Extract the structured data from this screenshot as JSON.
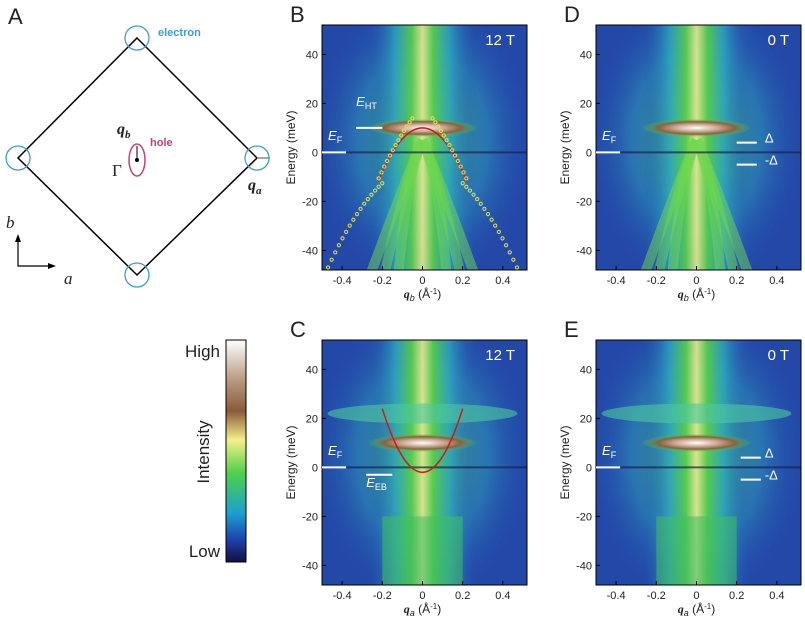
{
  "figure": {
    "panel_a": {
      "label": "A",
      "electron": "electron",
      "hole": "hole",
      "gamma": "Γ",
      "q_b": {
        "main": "q",
        "sub": "b"
      },
      "q_a": {
        "main": "q",
        "sub": "a"
      },
      "axis_b": "b",
      "axis_a": "a"
    },
    "colorbar": {
      "high": "High",
      "title": "Intensity",
      "low": "Low"
    },
    "axes": {
      "ylabel": "Energy (meV)",
      "xlim": [
        -0.5,
        0.52
      ],
      "ylim": [
        -48,
        52
      ],
      "xticks": [
        -0.4,
        -0.2,
        0,
        0.2,
        0.4
      ],
      "yticks": [
        -40,
        -20,
        0,
        20,
        40
      ]
    },
    "panels": [
      {
        "label": "B",
        "field": "12 T",
        "xlabel": {
          "q": "q",
          "sub": "b",
          "unit": " (Å",
          "exp": "-1",
          "close": ")"
        },
        "annotations": [
          {
            "main": "E",
            "sub": "HT"
          },
          {
            "main": "E",
            "sub": "F"
          }
        ]
      },
      {
        "label": "C",
        "field": "12 T",
        "xlabel": {
          "q": "q",
          "sub": "a",
          "unit": " (Å",
          "exp": "-1",
          "close": ")"
        },
        "annotations": [
          {
            "main": "E",
            "sub": "F"
          },
          {
            "main": "E",
            "sub": "EB"
          }
        ]
      },
      {
        "label": "D",
        "field": "0 T",
        "xlabel": {
          "q": "q",
          "sub": "b",
          "unit": " (Å",
          "exp": "-1",
          "close": ")"
        },
        "annotations": [
          {
            "main": "E",
            "sub": "F"
          },
          {
            "main": "Δ"
          },
          {
            "main": "-Δ"
          }
        ]
      },
      {
        "label": "E",
        "field": "0 T",
        "xlabel": {
          "q": "q",
          "sub": "a",
          "unit": " (Å",
          "exp": "-1",
          "close": ")"
        },
        "annotations": [
          {
            "main": "E",
            "sub": "F"
          },
          {
            "main": "Δ"
          },
          {
            "main": "-Δ"
          }
        ]
      }
    ]
  }
}
